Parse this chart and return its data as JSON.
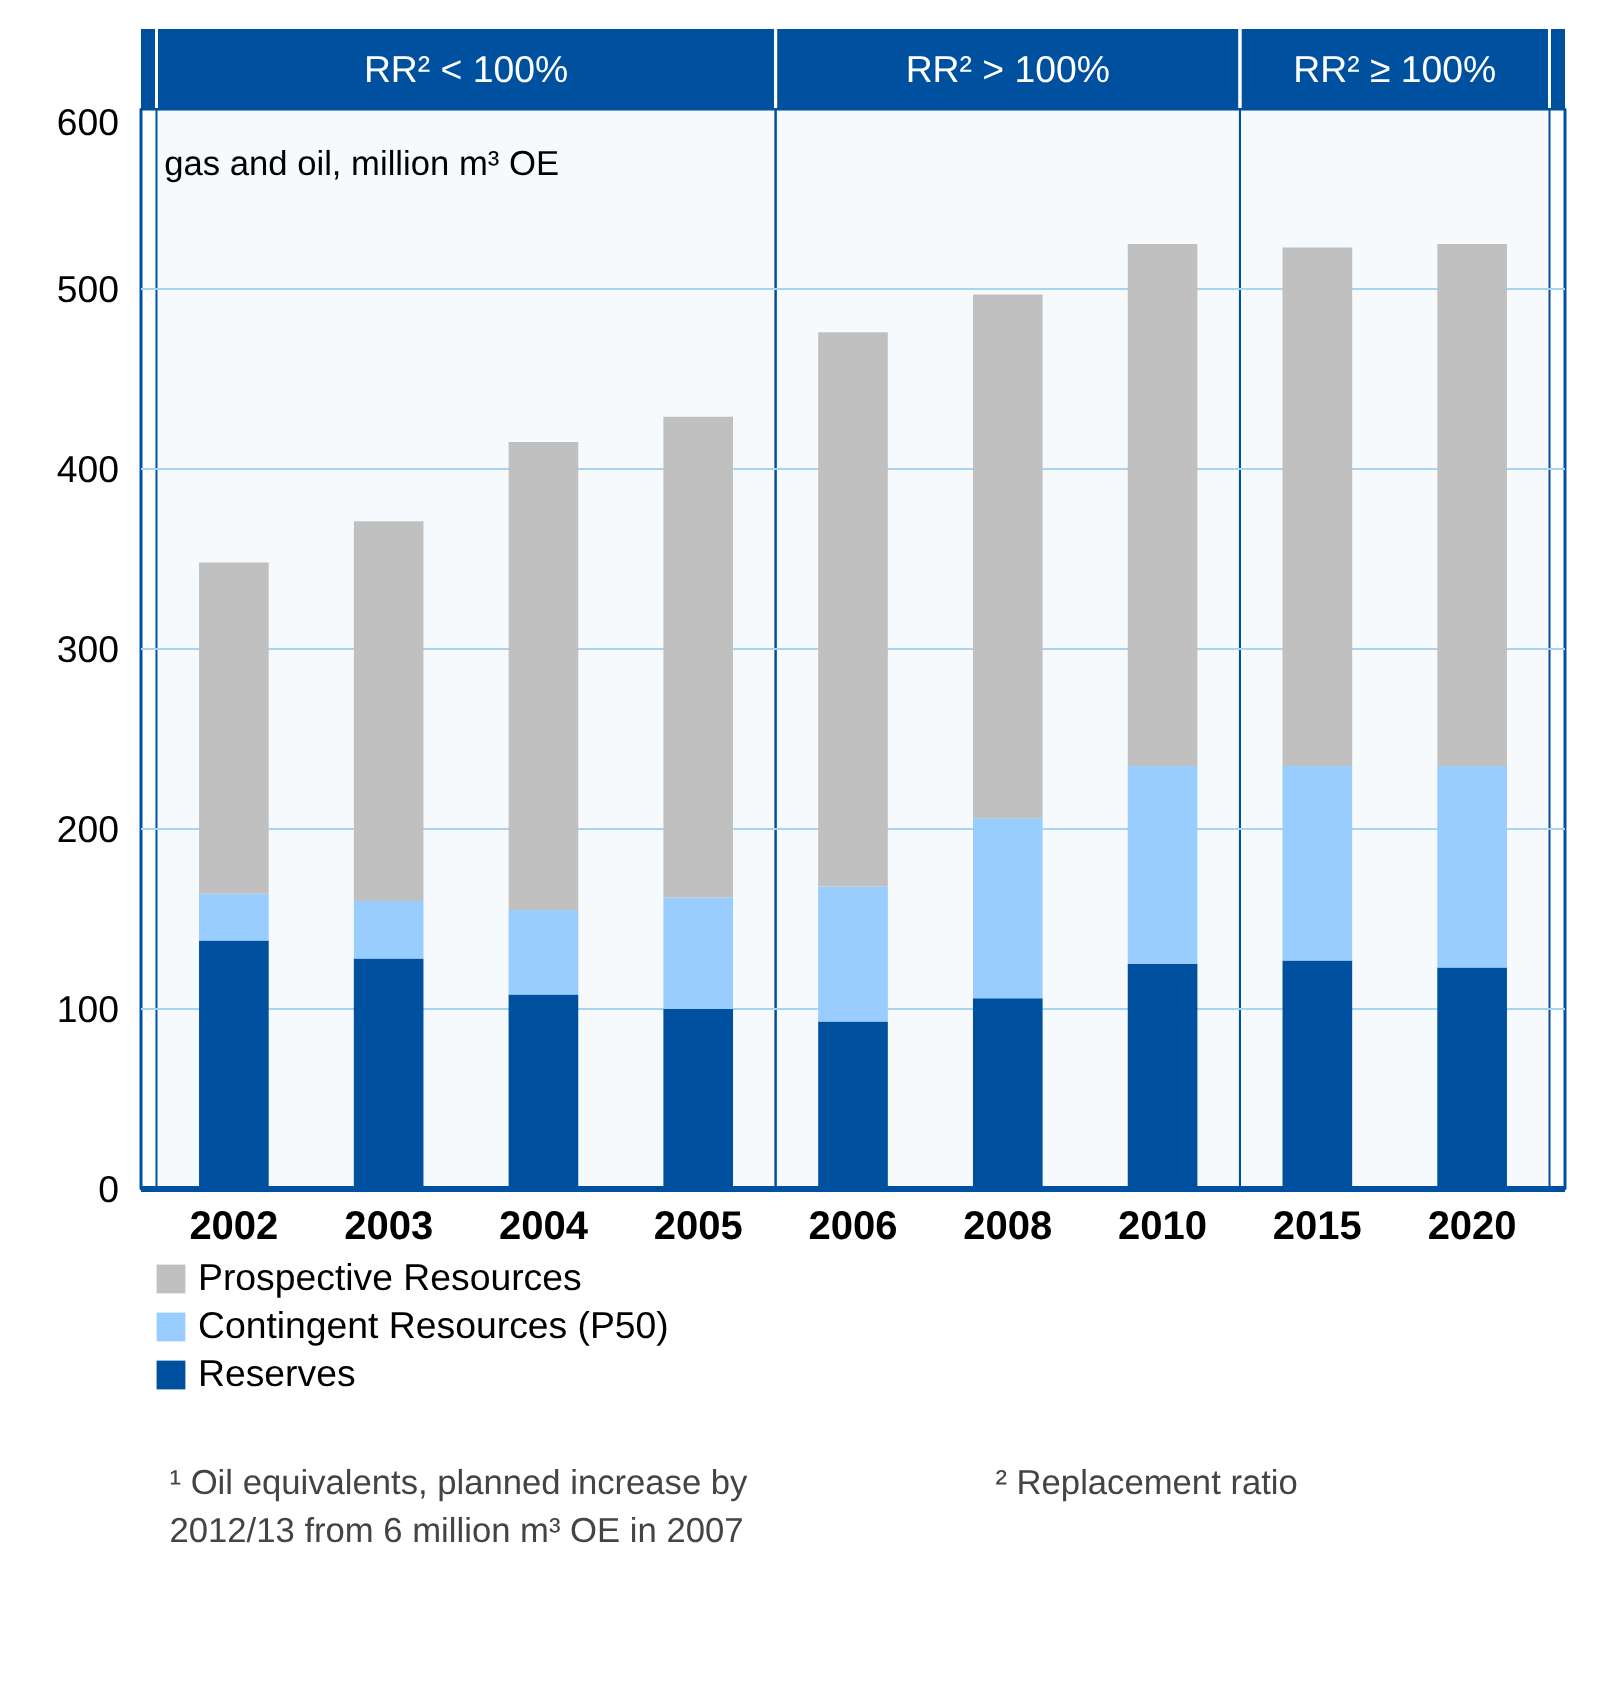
{
  "chart_data": {
    "type": "bar",
    "stacked": true,
    "categories": [
      "2002",
      "2003",
      "2004",
      "2005",
      "2006",
      "2008",
      "2010",
      "2015",
      "2020"
    ],
    "series": [
      {
        "name": "Reserves",
        "color": "#0050a0",
        "values": [
          138,
          128,
          108,
          100,
          93,
          106,
          125,
          127,
          123
        ]
      },
      {
        "name": "Contingent Resources (P50)",
        "color": "#99ccff",
        "values": [
          26,
          32,
          47,
          62,
          75,
          100,
          110,
          108,
          112
        ]
      },
      {
        "name": "Prospective Resources",
        "color": "#c0c0c0",
        "values": [
          184,
          211,
          260,
          267,
          308,
          291,
          290,
          288,
          290
        ]
      }
    ],
    "ylim": [
      0,
      600
    ],
    "yticks": [
      0,
      100,
      200,
      300,
      400,
      500,
      600
    ],
    "grid": "y",
    "legend": "bottom",
    "bands": [
      {
        "axis": "x",
        "from": "2002",
        "to": "2005",
        "label": "RR² < 100%",
        "color": "#0050a0"
      },
      {
        "axis": "x",
        "from": "2006",
        "to": "2010",
        "label": "RR² > 100%",
        "color": "#0050a0"
      },
      {
        "axis": "x",
        "from": "2015",
        "to": "2020",
        "label": "RR² ≥ 100%",
        "color": "#0050a0"
      }
    ],
    "annotations": [
      "gas and oil, million m³ OE",
      "¹ Oil equivalents, planned increase by\n2012/13 from 6 million m³ OE in 2007",
      "² Replacement ratio"
    ]
  }
}
